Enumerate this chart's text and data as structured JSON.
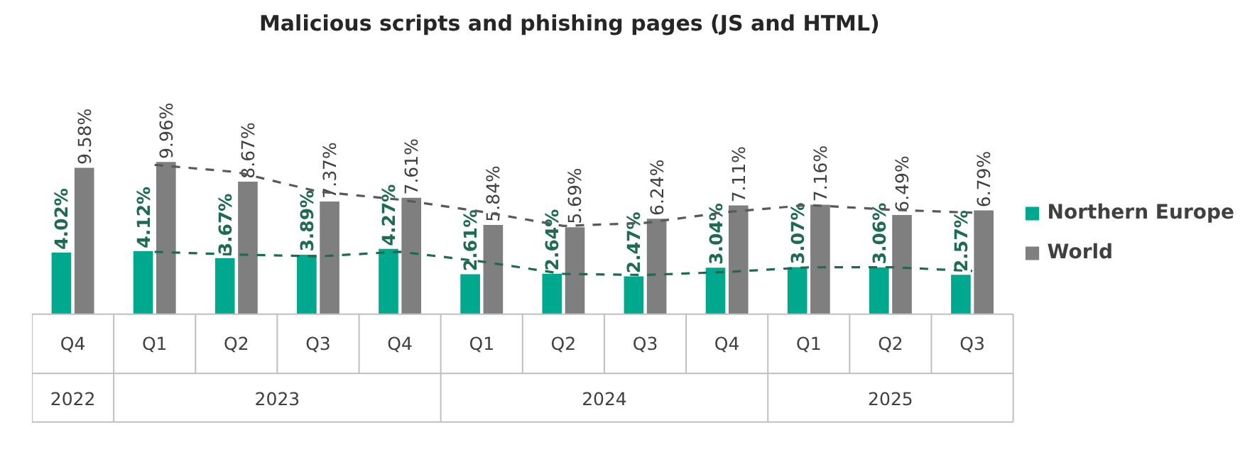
{
  "chart_data": {
    "type": "bar",
    "title": "Malicious scripts and phishing pages (JS and HTML)",
    "categories": [
      "Q4",
      "Q1",
      "Q2",
      "Q3",
      "Q4",
      "Q1",
      "Q2",
      "Q3",
      "Q4",
      "Q1",
      "Q2",
      "Q3"
    ],
    "annotations": [
      "2022",
      "2023",
      "2024",
      "2025"
    ],
    "series": [
      {
        "name": "Northern Europe",
        "color": "#00a88e",
        "values": [
          4.02,
          4.12,
          3.67,
          3.89,
          4.27,
          2.61,
          2.64,
          2.47,
          3.04,
          3.07,
          3.06,
          2.57
        ],
        "value_labels": [
          "4.02%",
          "4.12%",
          "3.67%",
          "3.89%",
          "4.27%",
          "2.61%",
          "2.64%",
          "2.47%",
          "3.04%",
          "3.07%",
          "3.06%",
          "2.57%"
        ]
      },
      {
        "name": "World",
        "color": "#7f7f7f",
        "values": [
          9.58,
          9.96,
          8.67,
          7.37,
          7.61,
          5.84,
          5.69,
          6.24,
          7.11,
          7.16,
          6.49,
          6.79
        ],
        "value_labels": [
          "9.58%",
          "9.96%",
          "8.67%",
          "7.37%",
          "7.61%",
          "5.84%",
          "5.69%",
          "6.24%",
          "7.11%",
          "7.16%",
          "6.49%",
          "6.79%"
        ]
      },
      {
        "type": "line",
        "color": "#1e6b52",
        "line_style": "dashed",
        "values": [
          null,
          4.07,
          3.9,
          3.78,
          4.08,
          3.44,
          2.63,
          2.56,
          2.76,
          3.06,
          3.07,
          2.82
        ]
      },
      {
        "type": "line",
        "color": "#595959",
        "line_style": "dashed",
        "values": [
          null,
          9.77,
          9.3,
          8.02,
          7.49,
          6.7,
          5.77,
          5.97,
          6.68,
          7.14,
          6.83,
          6.64
        ]
      }
    ],
    "legend": "right",
    "grid": false
  }
}
